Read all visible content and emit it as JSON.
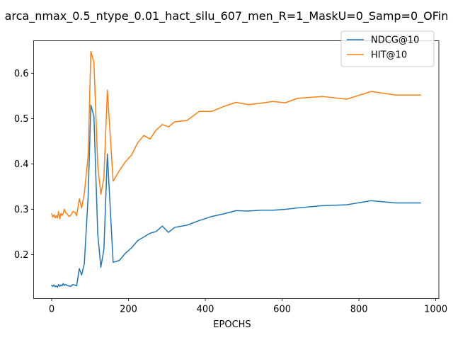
{
  "chart_data": {
    "type": "line",
    "title": "arca_nmax_0.5_ntype_0.01_hact_silu_607_men_R=1_MaskU=0_Samp=0_OFin",
    "xlabel": "EPOCHS",
    "ylabel": "",
    "xlim": [
      -47,
      1008
    ],
    "ylim": [
      0.103,
      0.672
    ],
    "xticks": [
      0,
      200,
      400,
      600,
      800,
      1000
    ],
    "yticks": [
      0.2,
      0.3,
      0.4,
      0.5,
      0.6
    ],
    "grid": false,
    "legend_position": "top-right",
    "series": [
      {
        "name": "NDCG@10",
        "color": "#1f77b4",
        "points": [
          [
            0,
            0.132
          ],
          [
            3,
            0.13
          ],
          [
            6,
            0.133
          ],
          [
            9,
            0.129
          ],
          [
            12,
            0.131
          ],
          [
            15,
            0.128
          ],
          [
            18,
            0.134
          ],
          [
            21,
            0.13
          ],
          [
            24,
            0.133
          ],
          [
            27,
            0.131
          ],
          [
            30,
            0.136
          ],
          [
            33,
            0.132
          ],
          [
            36,
            0.134
          ],
          [
            40,
            0.132
          ],
          [
            45,
            0.131
          ],
          [
            50,
            0.13
          ],
          [
            55,
            0.134
          ],
          [
            60,
            0.133
          ],
          [
            65,
            0.131
          ],
          [
            72,
            0.169
          ],
          [
            78,
            0.155
          ],
          [
            85,
            0.18
          ],
          [
            95,
            0.33
          ],
          [
            102,
            0.53
          ],
          [
            110,
            0.505
          ],
          [
            120,
            0.245
          ],
          [
            128,
            0.172
          ],
          [
            136,
            0.212
          ],
          [
            145,
            0.422
          ],
          [
            160,
            0.183
          ],
          [
            176,
            0.187
          ],
          [
            192,
            0.203
          ],
          [
            208,
            0.215
          ],
          [
            224,
            0.231
          ],
          [
            240,
            0.239
          ],
          [
            256,
            0.247
          ],
          [
            272,
            0.251
          ],
          [
            288,
            0.263
          ],
          [
            304,
            0.249
          ],
          [
            320,
            0.26
          ],
          [
            352,
            0.265
          ],
          [
            384,
            0.275
          ],
          [
            416,
            0.284
          ],
          [
            448,
            0.29
          ],
          [
            480,
            0.297
          ],
          [
            512,
            0.296
          ],
          [
            544,
            0.298
          ],
          [
            576,
            0.298
          ],
          [
            608,
            0.3
          ],
          [
            640,
            0.303
          ],
          [
            704,
            0.308
          ],
          [
            768,
            0.31
          ],
          [
            832,
            0.319
          ],
          [
            896,
            0.314
          ],
          [
            960,
            0.314
          ]
        ]
      },
      {
        "name": "HIT@10",
        "color": "#ff7f0e",
        "points": [
          [
            0,
            0.29
          ],
          [
            3,
            0.283
          ],
          [
            6,
            0.288
          ],
          [
            9,
            0.281
          ],
          [
            12,
            0.286
          ],
          [
            15,
            0.281
          ],
          [
            18,
            0.295
          ],
          [
            21,
            0.279
          ],
          [
            24,
            0.291
          ],
          [
            27,
            0.286
          ],
          [
            30,
            0.29
          ],
          [
            33,
            0.3
          ],
          [
            36,
            0.293
          ],
          [
            40,
            0.29
          ],
          [
            45,
            0.284
          ],
          [
            50,
            0.287
          ],
          [
            55,
            0.295
          ],
          [
            60,
            0.294
          ],
          [
            65,
            0.286
          ],
          [
            72,
            0.323
          ],
          [
            78,
            0.303
          ],
          [
            85,
            0.335
          ],
          [
            95,
            0.42
          ],
          [
            102,
            0.648
          ],
          [
            110,
            0.625
          ],
          [
            120,
            0.395
          ],
          [
            128,
            0.333
          ],
          [
            136,
            0.37
          ],
          [
            145,
            0.563
          ],
          [
            160,
            0.362
          ],
          [
            176,
            0.385
          ],
          [
            192,
            0.405
          ],
          [
            208,
            0.42
          ],
          [
            224,
            0.447
          ],
          [
            240,
            0.463
          ],
          [
            256,
            0.455
          ],
          [
            272,
            0.475
          ],
          [
            288,
            0.487
          ],
          [
            304,
            0.482
          ],
          [
            320,
            0.493
          ],
          [
            352,
            0.496
          ],
          [
            384,
            0.516
          ],
          [
            416,
            0.516
          ],
          [
            448,
            0.527
          ],
          [
            480,
            0.536
          ],
          [
            512,
            0.531
          ],
          [
            544,
            0.534
          ],
          [
            576,
            0.538
          ],
          [
            608,
            0.535
          ],
          [
            640,
            0.545
          ],
          [
            704,
            0.549
          ],
          [
            768,
            0.543
          ],
          [
            832,
            0.56
          ],
          [
            896,
            0.552
          ],
          [
            960,
            0.552
          ]
        ]
      }
    ]
  }
}
